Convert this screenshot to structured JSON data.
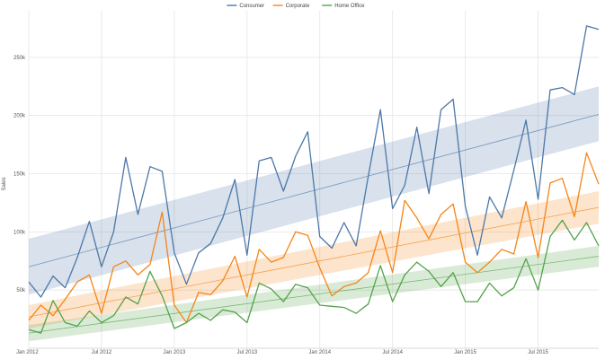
{
  "chart_data": {
    "type": "line",
    "ylabel": "Sales",
    "xlabel": "",
    "ylim": [
      0,
      290000
    ],
    "x_start": "2012-01",
    "x_labels": [
      "Jan 2012",
      "Jul 2012",
      "Jan 2013",
      "Jul 2013",
      "Jan 2014",
      "Jul 2014",
      "Jan 2015",
      "Jul 2015"
    ],
    "y_ticks": [
      50000,
      100000,
      150000,
      200000,
      250000
    ],
    "y_tick_labels": [
      "50k",
      "100k",
      "150k",
      "200k",
      "250k"
    ],
    "legend_position": "top-center",
    "grid": true,
    "series": [
      {
        "name": "Consumer",
        "color": "#4c78a8",
        "values": [
          57000,
          44000,
          62000,
          52000,
          78000,
          109000,
          70000,
          100000,
          164000,
          115000,
          156000,
          152000,
          82000,
          55000,
          82000,
          90000,
          112000,
          145000,
          80000,
          161000,
          164000,
          135000,
          165000,
          186000,
          96000,
          86000,
          108000,
          88000,
          148000,
          205000,
          120000,
          140000,
          190000,
          133000,
          205000,
          214000,
          122000,
          80000,
          130000,
          112000,
          153000,
          196000,
          128000,
          222000,
          224000,
          218000,
          277000,
          274000
        ],
        "trend": [
          70000,
          201000
        ],
        "band_low": [
          46000,
          178000
        ],
        "band_high": [
          94000,
          225000
        ]
      },
      {
        "name": "Corporate",
        "color": "#f58518",
        "values": [
          24000,
          37000,
          28000,
          42000,
          57000,
          63000,
          30000,
          70000,
          75000,
          63000,
          72000,
          117000,
          37000,
          22000,
          48000,
          46000,
          58000,
          79000,
          44000,
          85000,
          74000,
          78000,
          100000,
          97000,
          69000,
          45000,
          53000,
          56000,
          65000,
          101000,
          65000,
          127000,
          112000,
          94000,
          115000,
          124000,
          74000,
          65000,
          74000,
          85000,
          81000,
          126000,
          78000,
          142000,
          146000,
          113000,
          168000,
          141000
        ],
        "trend": [
          27000,
          121000
        ],
        "band_low": [
          17000,
          107000
        ],
        "band_high": [
          37000,
          135000
        ]
      },
      {
        "name": "Home Office",
        "color": "#54a24b",
        "values": [
          16000,
          13000,
          41000,
          22000,
          19000,
          32000,
          22000,
          28000,
          44000,
          38000,
          66000,
          45000,
          17000,
          22000,
          30000,
          24000,
          33000,
          31000,
          22000,
          56000,
          51000,
          40000,
          55000,
          52000,
          37000,
          36000,
          35000,
          30000,
          38000,
          71000,
          40000,
          63000,
          74000,
          66000,
          53000,
          65000,
          40000,
          40000,
          56000,
          45000,
          52000,
          77000,
          50000,
          96000,
          110000,
          93000,
          108000,
          88000
        ],
        "trend": [
          13000,
          79000
        ],
        "band_low": [
          6000,
          70000
        ],
        "band_high": [
          20000,
          88000
        ]
      }
    ]
  }
}
